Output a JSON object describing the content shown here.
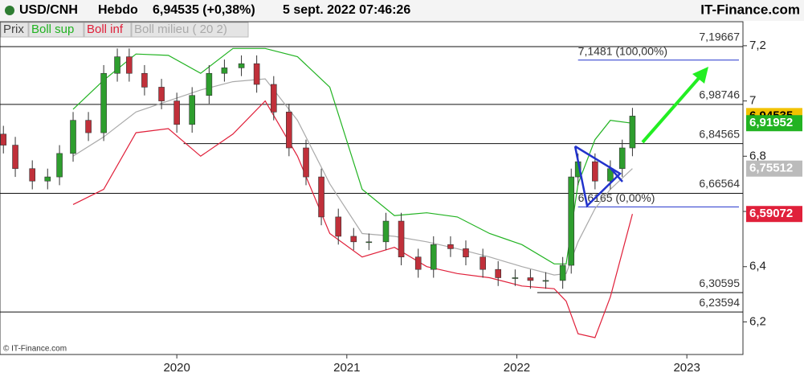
{
  "chart_data": {
    "type": "candlestick",
    "symbol": "USD/CNH",
    "period": "Hebdo",
    "quote": "6,94535 (+0,38%)",
    "date": "5 sept. 2022 07:46:26",
    "source": "IT-Finance.com",
    "copyright": "© IT-Finance.com",
    "xlim": [
      2018.96,
      2023.33
    ],
    "xticks": [
      2020,
      2021,
      2022,
      2023
    ],
    "ylim": [
      6.082,
      7.287
    ],
    "yticks": [
      {
        "value": 7.2,
        "label": "7,2"
      },
      7,
      {
        "value": 6.8,
        "label": "6,8"
      },
      {
        "value": 6.6,
        "label": "6,6"
      },
      {
        "value": 6.4,
        "label": "6,4"
      },
      {
        "value": 6.2,
        "label": "6,2"
      }
    ],
    "price": {
      "name": "Prix",
      "up_color": "#2e9e2e",
      "down_color": "#c0303a",
      "x": [
        2018.98,
        2019.05,
        2019.15,
        2019.24,
        2019.31,
        2019.39,
        2019.48,
        2019.57,
        2019.65,
        2019.72,
        2019.81,
        2019.91,
        2020.0,
        2020.09,
        2020.19,
        2020.28,
        2020.38,
        2020.47,
        2020.57,
        2020.66,
        2020.76,
        2020.85,
        2020.95,
        2021.04,
        2021.13,
        2021.23,
        2021.32,
        2021.42,
        2021.51,
        2021.61,
        2021.7,
        2021.8,
        2021.89,
        2021.99,
        2022.08,
        2022.17,
        2022.27,
        2022.32,
        2022.36,
        2022.46,
        2022.55,
        2022.62,
        2022.68
      ],
      "open": [
        6.88,
        6.84,
        6.755,
        6.71,
        6.725,
        6.81,
        6.93,
        6.885,
        7.1,
        7.16,
        7.1,
        7.05,
        7.0,
        6.915,
        7.02,
        7.1,
        7.12,
        7.135,
        7.06,
        6.96,
        6.83,
        6.725,
        6.58,
        6.51,
        6.49,
        6.49,
        6.565,
        6.435,
        6.39,
        6.48,
        6.465,
        6.435,
        6.39,
        6.36,
        6.36,
        6.35,
        6.35,
        6.405,
        6.725,
        6.78,
        6.71,
        6.755,
        6.83
      ],
      "high": [
        6.91,
        6.87,
        6.785,
        6.755,
        6.84,
        6.96,
        6.96,
        7.13,
        7.19,
        7.19,
        7.13,
        7.08,
        7.03,
        7.05,
        7.13,
        7.15,
        7.165,
        7.165,
        7.09,
        6.99,
        6.86,
        6.755,
        6.61,
        6.54,
        6.52,
        6.595,
        6.595,
        6.465,
        6.51,
        6.51,
        6.495,
        6.465,
        6.42,
        6.39,
        6.39,
        6.38,
        6.435,
        6.755,
        6.81,
        6.81,
        6.785,
        6.86,
        6.975
      ],
      "low": [
        6.81,
        6.725,
        6.68,
        6.68,
        6.695,
        6.78,
        6.855,
        6.855,
        7.07,
        7.07,
        7.02,
        6.97,
        6.885,
        6.885,
        6.99,
        7.07,
        7.09,
        7.03,
        6.93,
        6.8,
        6.695,
        6.55,
        6.48,
        6.46,
        6.46,
        6.46,
        6.405,
        6.36,
        6.36,
        6.435,
        6.405,
        6.36,
        6.33,
        6.33,
        6.32,
        6.32,
        6.32,
        6.375,
        6.695,
        6.68,
        6.68,
        6.725,
        6.8
      ],
      "close": [
        6.84,
        6.755,
        6.71,
        6.725,
        6.81,
        6.93,
        6.885,
        7.1,
        7.16,
        7.1,
        7.05,
        7.0,
        6.915,
        7.02,
        7.1,
        7.12,
        7.135,
        7.06,
        6.96,
        6.83,
        6.725,
        6.58,
        6.51,
        6.49,
        6.49,
        6.565,
        6.435,
        6.39,
        6.48,
        6.465,
        6.435,
        6.39,
        6.36,
        6.36,
        6.35,
        6.35,
        6.405,
        6.725,
        6.78,
        6.71,
        6.755,
        6.83,
        6.94535
      ]
    },
    "band_x": [
      2019.39,
      2019.57,
      2019.76,
      2019.95,
      2020.14,
      2020.33,
      2020.52,
      2020.71,
      2020.9,
      2021.09,
      2021.28,
      2021.47,
      2021.65,
      2021.84,
      2022.03,
      2022.22,
      2022.29,
      2022.36,
      2022.46,
      2022.55,
      2022.68
    ],
    "series": [
      {
        "name": "Boll sup",
        "color": "#22b322",
        "values": [
          6.97,
          7.075,
          7.17,
          7.165,
          7.1,
          7.19,
          7.19,
          7.16,
          7.05,
          6.68,
          6.585,
          6.595,
          6.58,
          6.52,
          6.48,
          6.41,
          6.41,
          6.7,
          6.86,
          6.93,
          6.91952
        ]
      },
      {
        "name": "Boll inf",
        "color": "#e0203a",
        "values": [
          6.625,
          6.68,
          6.885,
          6.9,
          6.8,
          6.88,
          7.0,
          6.8,
          6.52,
          6.435,
          6.47,
          6.4,
          6.375,
          6.36,
          6.33,
          6.32,
          6.275,
          6.157,
          6.143,
          6.29,
          6.59072
        ]
      },
      {
        "name": "Boll milieu ( 20 2)",
        "color": "#aaaaaa",
        "values": [
          6.8,
          6.87,
          6.96,
          7.0,
          7.04,
          7.07,
          7.08,
          6.93,
          6.7,
          6.52,
          6.51,
          6.49,
          6.465,
          6.435,
          6.4,
          6.37,
          6.375,
          6.49,
          6.61,
          6.68,
          6.75512
        ]
      }
    ],
    "levels": [
      {
        "value": 7.19667,
        "label": "7,19667"
      },
      {
        "value": 6.98746,
        "label": "6,98746"
      },
      {
        "value": 6.84565,
        "label": "6,84565",
        "from": 2020.04
      },
      {
        "value": 6.66564,
        "label": "6,66564"
      },
      {
        "value": 6.30595,
        "label": "6,30595",
        "from": 2022.12
      },
      {
        "value": 6.23594,
        "label": "6,23594"
      }
    ],
    "fibonacci": {
      "color": "#2233cc",
      "from": 2022.36,
      "levels": [
        {
          "value": 7.1481,
          "label": "7,1481 (100,00%)"
        },
        {
          "value": 6.6165,
          "label": "6,6165 (0,00%)"
        }
      ]
    },
    "last_labels": [
      {
        "value": 6.94535,
        "label": "6,94535",
        "color": "#f2c200",
        "text_color": "#000000"
      },
      {
        "value": 6.91952,
        "label": "6,91952",
        "color": "#22b322",
        "text_color": "#ffffff"
      },
      {
        "value": 6.75512,
        "label": "6,75512",
        "color": "#bbbbbb",
        "text_color": "#ffffff"
      },
      {
        "value": 6.59072,
        "label": "6,59072",
        "color": "#e0203a",
        "text_color": "#ffffff"
      }
    ]
  }
}
